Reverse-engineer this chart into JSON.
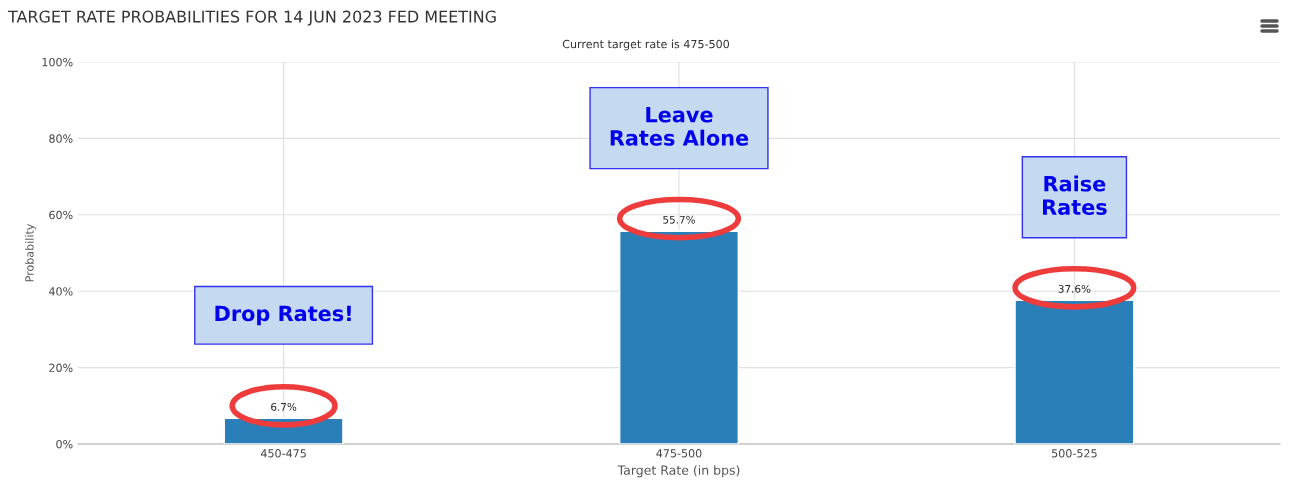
{
  "chart_data": {
    "type": "bar",
    "title": "TARGET RATE PROBABILITIES FOR 14 JUN 2023 FED MEETING",
    "subtitle": "Current target rate is 475-500",
    "xlabel": "Target Rate (in bps)",
    "ylabel": "Probability",
    "categories": [
      "450-475",
      "475-500",
      "500-525"
    ],
    "values": [
      6.7,
      55.7,
      37.6
    ],
    "color": "#2a7fb8",
    "value_labels": [
      "6.7%",
      "55.7%",
      "37.6%"
    ],
    "ylim": [
      0,
      100
    ],
    "yticks": [
      {
        "value": 0,
        "label": "0%"
      },
      {
        "value": 20,
        "label": "20%"
      },
      {
        "value": 40,
        "label": "40%"
      },
      {
        "value": 60,
        "label": "60%"
      },
      {
        "value": 80,
        "label": "80%"
      },
      {
        "value": 100,
        "label": "100%"
      }
    ],
    "grid": true,
    "annotations": [
      "Drop Rates!",
      "Leave\nRates Alone",
      "Raise\nRates"
    ]
  }
}
